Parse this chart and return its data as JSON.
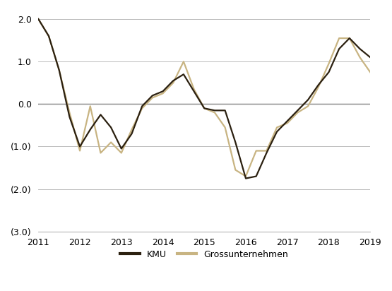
{
  "kmu_x": [
    2011,
    2011.25,
    2011.5,
    2011.75,
    2012,
    2012.25,
    2012.5,
    2012.75,
    2013,
    2013.25,
    2013.5,
    2013.75,
    2014,
    2014.25,
    2014.5,
    2014.75,
    2015,
    2015.25,
    2015.5,
    2015.75,
    2016,
    2016.25,
    2016.5,
    2016.75,
    2017,
    2017.25,
    2017.5,
    2017.75,
    2018,
    2018.25,
    2018.5,
    2018.75,
    2019
  ],
  "kmu_y": [
    2.0,
    1.6,
    0.8,
    -0.3,
    -1.0,
    -0.6,
    -0.25,
    -0.55,
    -1.05,
    -0.7,
    -0.05,
    0.2,
    0.3,
    0.55,
    0.7,
    0.3,
    -0.1,
    -0.15,
    -0.15,
    -0.9,
    -1.75,
    -1.7,
    -1.15,
    -0.65,
    -0.4,
    -0.15,
    0.1,
    0.45,
    0.75,
    1.3,
    1.55,
    1.3,
    1.1
  ],
  "gross_x": [
    2011,
    2011.25,
    2011.5,
    2011.75,
    2012,
    2012.25,
    2012.5,
    2012.75,
    2013,
    2013.25,
    2013.5,
    2013.75,
    2014,
    2014.25,
    2014.5,
    2014.75,
    2015,
    2015.25,
    2015.5,
    2015.75,
    2016,
    2016.25,
    2016.5,
    2016.75,
    2017,
    2017.25,
    2017.5,
    2017.75,
    2018,
    2018.25,
    2018.5,
    2018.75,
    2019
  ],
  "gross_y": [
    2.0,
    1.6,
    0.8,
    -0.2,
    -1.1,
    -0.05,
    -1.15,
    -0.9,
    -1.15,
    -0.6,
    -0.1,
    0.15,
    0.25,
    0.5,
    1.0,
    0.35,
    -0.1,
    -0.2,
    -0.55,
    -1.55,
    -1.7,
    -1.1,
    -1.1,
    -0.55,
    -0.45,
    -0.2,
    -0.05,
    0.4,
    0.95,
    1.55,
    1.55,
    1.1,
    0.75
  ],
  "kmu_color": "#2b2010",
  "gross_color": "#c8b482",
  "kmu_label": "KMU",
  "gross_label": "Grossunternehmen",
  "xlim": [
    2011,
    2019
  ],
  "ylim": [
    -3.0,
    2.2
  ],
  "yticks": [
    2.0,
    1.0,
    0.0,
    -1.0,
    -2.0,
    -3.0
  ],
  "ytick_labels": [
    "2.0",
    "1.0",
    "0.0",
    "(1.0)",
    "(2.0)",
    "(3.0)"
  ],
  "xticks": [
    2011,
    2012,
    2013,
    2014,
    2015,
    2016,
    2017,
    2018,
    2019
  ],
  "line_width": 1.6,
  "background_color": "#ffffff",
  "grid_color": "#b0b0b0",
  "zero_line_color": "#000000"
}
